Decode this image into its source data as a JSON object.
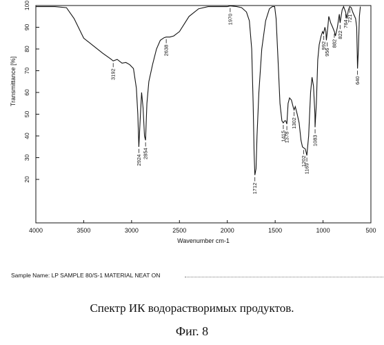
{
  "chart_data": {
    "type": "line",
    "title": "",
    "xlabel": "Wavenumber cm-1",
    "ylabel": "Transmittance [%]",
    "xlim": [
      4000,
      500
    ],
    "ylim": [
      0,
      100
    ],
    "x_ticks": [
      4000,
      3500,
      3000,
      2500,
      2000,
      1500,
      1000,
      500
    ],
    "y_ticks": [
      20,
      30,
      40,
      50,
      60,
      70,
      80,
      90,
      100
    ],
    "grid": false,
    "series": [
      {
        "x": [
          4000,
          3800,
          3680,
          3600,
          3500,
          3400,
          3300,
          3220,
          3192,
          3150,
          3100,
          3060,
          3020,
          2980,
          2950,
          2935,
          2924,
          2910,
          2895,
          2880,
          2865,
          2854,
          2840,
          2820,
          2780,
          2740,
          2700,
          2660,
          2638,
          2600,
          2560,
          2500,
          2400,
          2300,
          2200,
          2100,
          2000,
          1970,
          1900,
          1850,
          1800,
          1770,
          1745,
          1730,
          1720,
          1712,
          1700,
          1690,
          1670,
          1640,
          1600,
          1560,
          1530,
          1505,
          1490,
          1470,
          1450,
          1430,
          1415,
          1400,
          1390,
          1378,
          1365,
          1350,
          1330,
          1310,
          1302,
          1290,
          1270,
          1250,
          1230,
          1215,
          1202,
          1185,
          1169,
          1150,
          1130,
          1115,
          1100,
          1085,
          1083,
          1070,
          1055,
          1040,
          1020,
          1005,
          995,
          980,
          970,
          965,
          950,
          940,
          920,
          900,
          882,
          870,
          850,
          830,
          822,
          800,
          785,
          764,
          750,
          735,
          721,
          705,
          690,
          680,
          660,
          648,
          640,
          630,
          620,
          610
        ],
        "y": [
          99.5,
          99.5,
          99.0,
          94.0,
          85.0,
          81.5,
          78.0,
          75.5,
          74.5,
          75.2,
          73.5,
          73.8,
          72.8,
          71.0,
          62.0,
          50.0,
          35.0,
          48.0,
          60.0,
          53.0,
          40.0,
          38.0,
          55.0,
          65.0,
          73.0,
          80.0,
          84.0,
          85.2,
          85.5,
          85.5,
          86.0,
          88.0,
          95.0,
          98.5,
          99.5,
          99.5,
          99.5,
          99.8,
          99.5,
          99.0,
          97.0,
          93.0,
          80.0,
          55.0,
          32.0,
          22.0,
          25.0,
          40.0,
          60.0,
          80.0,
          93.0,
          98.5,
          99.5,
          99.5,
          94.0,
          75.0,
          55.0,
          47.0,
          46.0,
          47.0,
          47.0,
          45.5,
          55.0,
          57.5,
          56.5,
          53.0,
          52.0,
          53.5,
          50.0,
          46.0,
          38.0,
          35.0,
          34.5,
          34.0,
          31.0,
          40.0,
          60.0,
          67.0,
          63.0,
          50.0,
          44.0,
          55.0,
          75.0,
          82.0,
          86.0,
          88.0,
          87.0,
          90.0,
          88.0,
          84.0,
          90.0,
          95.0,
          92.0,
          90.0,
          88.0,
          86.0,
          90.0,
          96.0,
          92.0,
          98.0,
          99.5,
          97.0,
          94.0,
          98.0,
          99.5,
          99.0,
          97.0,
          96.0,
          94.0,
          90.0,
          71.0,
          80.0,
          95.0,
          99.5
        ]
      }
    ],
    "annotations": [
      {
        "label": "3192",
        "x": 3192,
        "y": 74.5
      },
      {
        "label": "2924",
        "x": 2924,
        "y": 35.0
      },
      {
        "label": "2854",
        "x": 2854,
        "y": 38.0
      },
      {
        "label": "2638",
        "x": 2638,
        "y": 85.5
      },
      {
        "label": "1970",
        "x": 1970,
        "y": 99.8
      },
      {
        "label": "1712",
        "x": 1712,
        "y": 22.0
      },
      {
        "label": "1415",
        "x": 1415,
        "y": 46.0
      },
      {
        "label": "1378",
        "x": 1378,
        "y": 45.5
      },
      {
        "label": "1302",
        "x": 1302,
        "y": 52.0
      },
      {
        "label": "1202",
        "x": 1202,
        "y": 34.5
      },
      {
        "label": "1169",
        "x": 1169,
        "y": 31.0
      },
      {
        "label": "1083",
        "x": 1083,
        "y": 44.0
      },
      {
        "label": "992",
        "x": 992,
        "y": 87.0
      },
      {
        "label": "956",
        "x": 956,
        "y": 84.0
      },
      {
        "label": "882",
        "x": 882,
        "y": 88.0
      },
      {
        "label": "822",
        "x": 822,
        "y": 92.0
      },
      {
        "label": "764",
        "x": 764,
        "y": 97.0
      },
      {
        "label": "721",
        "x": 721,
        "y": 99.5
      },
      {
        "label": "640",
        "x": 640,
        "y": 71.0
      }
    ]
  },
  "sample_name": "Sample Name: LP SAMPLE 80/S-1 MATERIAL NEAT ON",
  "caption_1": "Спектр ИК водорастворимых продуктов.",
  "caption_2": "Фиг. 8"
}
